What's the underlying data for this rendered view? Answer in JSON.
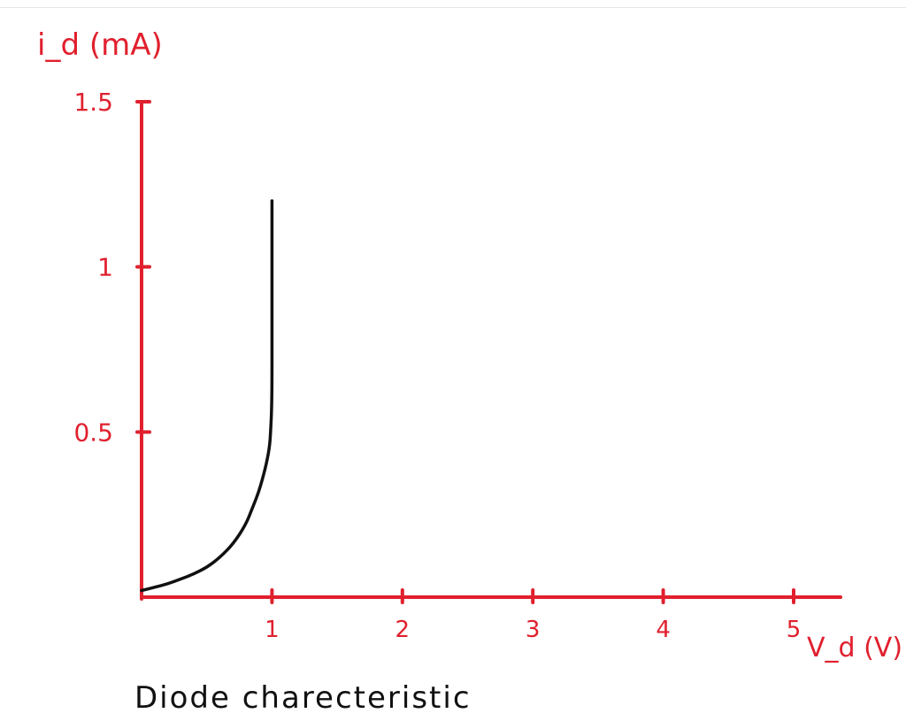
{
  "chart_data": {
    "type": "line",
    "title": "Diode charecteristic",
    "ylabel": "i_d (mA)",
    "xlabel": "V_d (V)",
    "x_ticks": [
      "1",
      "2",
      "3",
      "4",
      "5"
    ],
    "y_ticks": [
      "0.5",
      "1",
      "1.5"
    ],
    "xlim": [
      0,
      5
    ],
    "ylim": [
      0,
      1.5
    ],
    "grid": false,
    "colors": {
      "axes": "#e0202e",
      "curve": "#111111"
    },
    "series": [
      {
        "x": [
          0,
          0.1,
          0.2,
          0.3,
          0.4,
          0.5,
          0.6,
          0.7,
          0.8,
          0.85,
          0.9,
          0.95,
          0.98,
          0.99,
          1.0,
          1.0,
          1.0,
          1.0,
          1.0
        ],
        "values": [
          0.02,
          0.03,
          0.04,
          0.055,
          0.07,
          0.09,
          0.12,
          0.16,
          0.22,
          0.27,
          0.32,
          0.39,
          0.45,
          0.5,
          0.6,
          0.8,
          1.0,
          1.15,
          1.2
        ]
      }
    ]
  }
}
